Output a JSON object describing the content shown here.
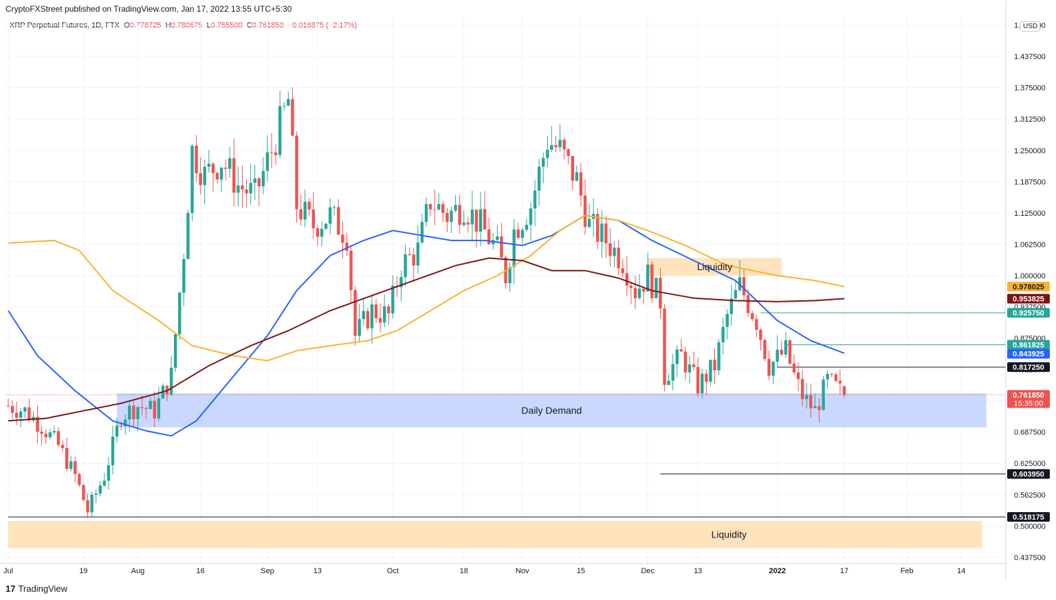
{
  "header": {
    "publisher": "CryptoFXStreet published on TradingView.com, Jan 17, 2022 13:55 UTC+5:30"
  },
  "legend": {
    "symbol": "XRP Perpetual Futures, 1D, FTX",
    "open_label": "O",
    "open": "0.778725",
    "high_label": "H",
    "high": "0.780675",
    "low_label": "L",
    "low": "0.755500",
    "close_label": "C",
    "close": "0.761850",
    "change": "−0.016875 (−2.17%)"
  },
  "currency": "USD",
  "footer": {
    "brand": "TradingView",
    "logo_glyph": "17"
  },
  "colors": {
    "up": "#26a69a",
    "down": "#ef5350",
    "ma_blue": "#2962ff",
    "ma_orange": "#f9b430",
    "ma_darkred": "#7b1515",
    "demand_zone": "#c9d8ff",
    "liquidity_zone": "#ffe3bc"
  },
  "chart_data": {
    "type": "candlestick",
    "symbol": "XRP Perpetual Futures",
    "interval": "1D",
    "exchange": "FTX",
    "y_axis": {
      "ticks": [
        "1.500000",
        "1.437500",
        "1.375000",
        "1.312500",
        "1.250000",
        "1.187500",
        "1.125000",
        "1.062500",
        "1.000000",
        "0.937500",
        "0.875000",
        "0.812500",
        "0.750000",
        "0.687500",
        "0.625000",
        "0.562500",
        "0.500000",
        "0.437500"
      ],
      "range": [
        0.425,
        1.52
      ]
    },
    "x_axis": {
      "ticks": [
        {
          "label": "Jul",
          "date": "2021-07-01"
        },
        {
          "label": "19",
          "date": "2021-07-19"
        },
        {
          "label": "Aug",
          "date": "2021-08-01"
        },
        {
          "label": "16",
          "date": "2021-08-16"
        },
        {
          "label": "Sep",
          "date": "2021-09-01"
        },
        {
          "label": "13",
          "date": "2021-09-13"
        },
        {
          "label": "Oct",
          "date": "2021-10-01"
        },
        {
          "label": "18",
          "date": "2021-10-18"
        },
        {
          "label": "Nov",
          "date": "2021-11-01"
        },
        {
          "label": "15",
          "date": "2021-11-15"
        },
        {
          "label": "Dec",
          "date": "2021-12-01"
        },
        {
          "label": "13",
          "date": "2021-12-13"
        },
        {
          "label": "2022",
          "date": "2022-01-01"
        },
        {
          "label": "17",
          "date": "2022-01-17"
        },
        {
          "label": "Feb",
          "date": "2022-02-01"
        },
        {
          "label": "14",
          "date": "2022-02-14"
        }
      ]
    },
    "anchors": [
      [
        "2021-07-01",
        0.74
      ],
      [
        "2021-07-05",
        0.73
      ],
      [
        "2021-07-09",
        0.7
      ],
      [
        "2021-07-13",
        0.66
      ],
      [
        "2021-07-17",
        0.6
      ],
      [
        "2021-07-20",
        0.53
      ],
      [
        "2021-07-24",
        0.6
      ],
      [
        "2021-07-28",
        0.72
      ],
      [
        "2021-08-01",
        0.74
      ],
      [
        "2021-08-05",
        0.73
      ],
      [
        "2021-08-09",
        0.8
      ],
      [
        "2021-08-12",
        1.05
      ],
      [
        "2021-08-14",
        1.25
      ],
      [
        "2021-08-17",
        1.2
      ],
      [
        "2021-08-21",
        1.23
      ],
      [
        "2021-08-25",
        1.18
      ],
      [
        "2021-08-29",
        1.16
      ],
      [
        "2021-09-02",
        1.25
      ],
      [
        "2021-09-06",
        1.35
      ],
      [
        "2021-09-08",
        1.14
      ],
      [
        "2021-09-12",
        1.1
      ],
      [
        "2021-09-16",
        1.12
      ],
      [
        "2021-09-20",
        1.08
      ],
      [
        "2021-09-22",
        0.88
      ],
      [
        "2021-09-26",
        0.93
      ],
      [
        "2021-09-30",
        0.92
      ],
      [
        "2021-10-03",
        1.02
      ],
      [
        "2021-10-07",
        1.05
      ],
      [
        "2021-10-10",
        1.15
      ],
      [
        "2021-10-14",
        1.12
      ],
      [
        "2021-10-18",
        1.14
      ],
      [
        "2021-10-22",
        1.1
      ],
      [
        "2021-10-26",
        1.05
      ],
      [
        "2021-10-28",
        1.0
      ],
      [
        "2021-10-30",
        1.09
      ],
      [
        "2021-11-03",
        1.14
      ],
      [
        "2021-11-07",
        1.27
      ],
      [
        "2021-11-10",
        1.25
      ],
      [
        "2021-11-14",
        1.19
      ],
      [
        "2021-11-17",
        1.1
      ],
      [
        "2021-11-21",
        1.07
      ],
      [
        "2021-11-25",
        1.03
      ],
      [
        "2021-11-28",
        0.97
      ],
      [
        "2021-12-01",
        1.0
      ],
      [
        "2021-12-04",
        0.95
      ],
      [
        "2021-12-05",
        0.8
      ],
      [
        "2021-12-09",
        0.84
      ],
      [
        "2021-12-13",
        0.78
      ],
      [
        "2021-12-17",
        0.82
      ],
      [
        "2021-12-20",
        0.92
      ],
      [
        "2021-12-23",
        0.98
      ],
      [
        "2021-12-27",
        0.91
      ],
      [
        "2021-12-30",
        0.82
      ],
      [
        "2022-01-03",
        0.85
      ],
      [
        "2022-01-05",
        0.8
      ],
      [
        "2022-01-07",
        0.76
      ],
      [
        "2022-01-10",
        0.73
      ],
      [
        "2022-01-13",
        0.79
      ],
      [
        "2022-01-17",
        0.76185
      ]
    ],
    "moving_averages": [
      {
        "color": "ma_blue",
        "points": [
          [
            "2021-07-01",
            0.93
          ],
          [
            "2021-07-08",
            0.84
          ],
          [
            "2021-07-17",
            0.77
          ],
          [
            "2021-07-26",
            0.71
          ],
          [
            "2021-08-03",
            0.69
          ],
          [
            "2021-08-09",
            0.68
          ],
          [
            "2021-08-15",
            0.71
          ],
          [
            "2021-08-23",
            0.79
          ],
          [
            "2021-09-01",
            0.88
          ],
          [
            "2021-09-08",
            0.97
          ],
          [
            "2021-09-16",
            1.04
          ],
          [
            "2021-09-24",
            1.07
          ],
          [
            "2021-10-01",
            1.09
          ],
          [
            "2021-10-08",
            1.08
          ],
          [
            "2021-10-15",
            1.07
          ],
          [
            "2021-10-23",
            1.07
          ],
          [
            "2021-11-01",
            1.06
          ],
          [
            "2021-11-08",
            1.08
          ],
          [
            "2021-11-16",
            1.12
          ],
          [
            "2021-11-24",
            1.11
          ],
          [
            "2021-12-02",
            1.07
          ],
          [
            "2021-12-12",
            1.03
          ],
          [
            "2021-12-22",
            0.99
          ],
          [
            "2022-01-01",
            0.91
          ],
          [
            "2022-01-09",
            0.87
          ],
          [
            "2022-01-17",
            0.845
          ]
        ]
      },
      {
        "color": "ma_orange",
        "points": [
          [
            "2021-07-01",
            1.065
          ],
          [
            "2021-07-12",
            1.07
          ],
          [
            "2021-07-18",
            1.05
          ],
          [
            "2021-07-26",
            0.97
          ],
          [
            "2021-08-06",
            0.91
          ],
          [
            "2021-08-14",
            0.86
          ],
          [
            "2021-08-24",
            0.84
          ],
          [
            "2021-09-01",
            0.83
          ],
          [
            "2021-09-08",
            0.85
          ],
          [
            "2021-09-16",
            0.86
          ],
          [
            "2021-09-25",
            0.87
          ],
          [
            "2021-10-02",
            0.89
          ],
          [
            "2021-10-10",
            0.93
          ],
          [
            "2021-10-18",
            0.97
          ],
          [
            "2021-10-26",
            1.0
          ],
          [
            "2021-11-03",
            1.04
          ],
          [
            "2021-11-10",
            1.09
          ],
          [
            "2021-11-16",
            1.12
          ],
          [
            "2021-11-24",
            1.11
          ],
          [
            "2021-12-01",
            1.09
          ],
          [
            "2021-12-10",
            1.06
          ],
          [
            "2021-12-20",
            1.02
          ],
          [
            "2022-01-01",
            1.0
          ],
          [
            "2022-01-10",
            0.99
          ],
          [
            "2022-01-17",
            0.978
          ]
        ]
      },
      {
        "color": "ma_darkred",
        "points": [
          [
            "2021-07-01",
            0.71
          ],
          [
            "2021-07-10",
            0.715
          ],
          [
            "2021-07-19",
            0.73
          ],
          [
            "2021-07-28",
            0.745
          ],
          [
            "2021-08-08",
            0.77
          ],
          [
            "2021-08-18",
            0.82
          ],
          [
            "2021-08-28",
            0.86
          ],
          [
            "2021-09-06",
            0.89
          ],
          [
            "2021-09-16",
            0.93
          ],
          [
            "2021-09-26",
            0.96
          ],
          [
            "2021-10-06",
            0.99
          ],
          [
            "2021-10-16",
            1.02
          ],
          [
            "2021-10-24",
            1.035
          ],
          [
            "2021-11-01",
            1.03
          ],
          [
            "2021-11-08",
            1.01
          ],
          [
            "2021-11-16",
            1.01
          ],
          [
            "2021-11-24",
            0.995
          ],
          [
            "2021-12-02",
            0.97
          ],
          [
            "2021-12-12",
            0.955
          ],
          [
            "2021-12-22",
            0.95
          ],
          [
            "2022-01-01",
            0.948
          ],
          [
            "2022-01-10",
            0.95
          ],
          [
            "2022-01-17",
            0.954
          ]
        ]
      }
    ],
    "zones": [
      {
        "label": "Daily Demand",
        "color": "demand_zone",
        "from": "2021-07-27",
        "to": "2022-02-20",
        "top": 0.765,
        "bottom": 0.697
      },
      {
        "label": "Liquidity",
        "color": "liquidity_zone",
        "from": "2021-12-01",
        "to": "2022-01-02",
        "top": 1.035,
        "bottom": 1.0
      },
      {
        "label": "Liquidity",
        "color": "liquidity_zone",
        "from": "2021-07-01",
        "to": "2022-02-19",
        "top": 0.51,
        "bottom": 0.456
      }
    ],
    "levels": [
      {
        "value": 0.92575,
        "from": "2021-12-28",
        "color": "#26a69a"
      },
      {
        "value": 0.861825,
        "from": "2022-01-03",
        "color": "#26a69a"
      },
      {
        "value": 0.81725,
        "from": "2022-01-01",
        "color": "#131722"
      },
      {
        "value": 0.60395,
        "from": "2021-12-04",
        "color": "#131722"
      },
      {
        "value": 0.518175,
        "from": "2021-07-01",
        "color": "#131722"
      }
    ],
    "price_labels": [
      {
        "text": "0.978025",
        "value": 0.978025,
        "bg": "#f9b430",
        "fg": "#131722"
      },
      {
        "text": "0.953825",
        "value": 0.953825,
        "bg": "#7b1515",
        "fg": "#ffffff"
      },
      {
        "text": "0.925750",
        "value": 0.92575,
        "bg": "#26a69a",
        "fg": "#ffffff"
      },
      {
        "text": "0.861825",
        "value": 0.861825,
        "bg": "#26a69a",
        "fg": "#ffffff"
      },
      {
        "text": "0.843925",
        "value": 0.843925,
        "bg": "#2962ff",
        "fg": "#ffffff"
      },
      {
        "text": "0.817250",
        "value": 0.81725,
        "bg": "#131722",
        "fg": "#ffffff"
      },
      {
        "text": "0.761850",
        "value": 0.76185,
        "bg": "#ef5350",
        "fg": "#ffffff",
        "sub": "15:35:00"
      },
      {
        "text": "0.603950",
        "value": 0.60395,
        "bg": "#131722",
        "fg": "#ffffff"
      },
      {
        "text": "0.518175",
        "value": 0.518175,
        "bg": "#131722",
        "fg": "#ffffff"
      }
    ],
    "last_price": 0.76185
  }
}
